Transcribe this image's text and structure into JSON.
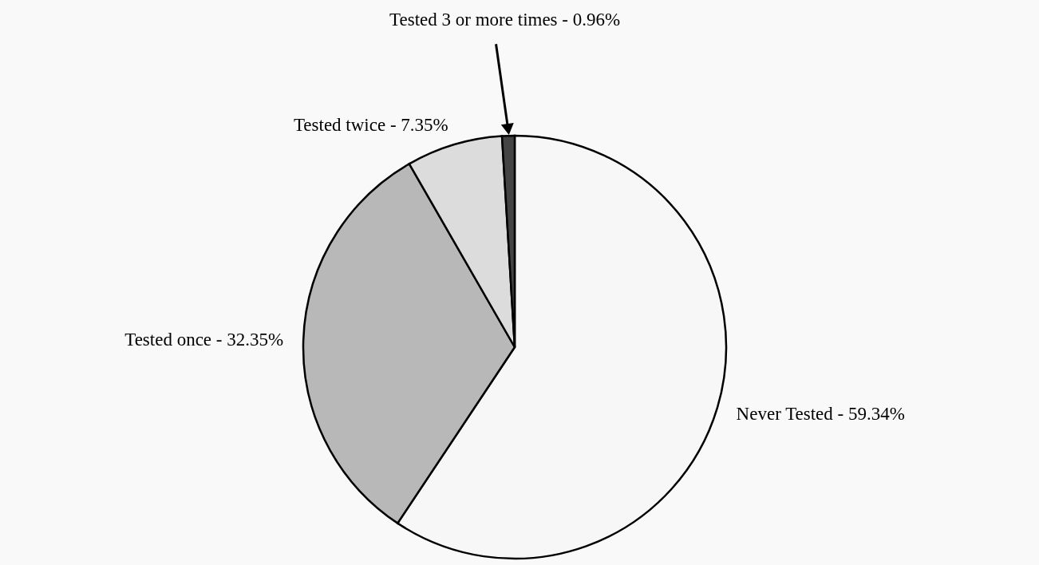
{
  "chart_data": {
    "type": "pie",
    "categories": [
      "Never Tested - 59.34%",
      "Tested once - 32.35%",
      "Tested twice - 7.35%",
      "Tested 3 or more times - 0.96%"
    ],
    "values": [
      59.34,
      32.35,
      7.35,
      0.96
    ],
    "colors": [
      "#f7f7f7",
      "#b8b8b8",
      "#dcdcdc",
      "#444444"
    ]
  }
}
